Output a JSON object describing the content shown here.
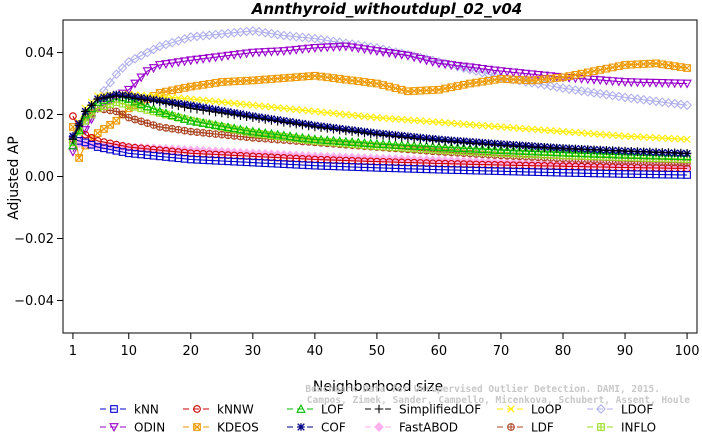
{
  "chart_data": {
    "type": "line",
    "title": "Annthyroid_withoutdupl_02_v04",
    "xlabel": "Neighborhood size",
    "ylabel": "Adjusted AP",
    "xlim": [
      1,
      100
    ],
    "ylim": [
      -0.05,
      0.05
    ],
    "xticks": [
      1,
      10,
      20,
      30,
      40,
      50,
      60,
      70,
      80,
      90,
      100
    ],
    "yticks": [
      -0.04,
      -0.02,
      0.0,
      0.02,
      0.04
    ],
    "ytick_labels": [
      "−0.04",
      "−0.02",
      "0.00",
      "0.02",
      "0.04"
    ],
    "grid": false,
    "legend_position": "bottom",
    "watermark": [
      "Benchmark Data for Unsupervised Outlier Detection. DAMI, 2015.",
      "Campos, Zimek, Sander, Campello, Micenkova, Schubert, Assent, Houle"
    ],
    "series": [
      {
        "name": "kNN",
        "color": "#0000cc",
        "marker": "square",
        "points": [
          [
            1,
            0.012
          ],
          [
            3,
            0.011
          ],
          [
            5,
            0.0095
          ],
          [
            10,
            0.0075
          ],
          [
            20,
            0.0055
          ],
          [
            30,
            0.0045
          ],
          [
            40,
            0.0035
          ],
          [
            50,
            0.0028
          ],
          [
            60,
            0.0022
          ],
          [
            70,
            0.0017
          ],
          [
            80,
            0.0012
          ],
          [
            90,
            0.0008
          ],
          [
            100,
            0.0005
          ]
        ]
      },
      {
        "name": "kNNW",
        "color": "#cc0000",
        "marker": "circle",
        "points": [
          [
            1,
            0.0195
          ],
          [
            2,
            0.0155
          ],
          [
            3,
            0.0135
          ],
          [
            5,
            0.0115
          ],
          [
            10,
            0.0095
          ],
          [
            20,
            0.0075
          ],
          [
            30,
            0.0065
          ],
          [
            40,
            0.0055
          ],
          [
            50,
            0.0048
          ],
          [
            60,
            0.0042
          ],
          [
            70,
            0.0037
          ],
          [
            80,
            0.0033
          ],
          [
            90,
            0.0029
          ],
          [
            100,
            0.0026
          ]
        ]
      },
      {
        "name": "LOF",
        "color": "#00bb00",
        "marker": "triangle-up",
        "points": [
          [
            1,
            0.01
          ],
          [
            3,
            0.02
          ],
          [
            5,
            0.024
          ],
          [
            8,
            0.026
          ],
          [
            10,
            0.025
          ],
          [
            15,
            0.021
          ],
          [
            20,
            0.018
          ],
          [
            30,
            0.0145
          ],
          [
            40,
            0.012
          ],
          [
            50,
            0.0105
          ],
          [
            60,
            0.0095
          ],
          [
            70,
            0.0085
          ],
          [
            80,
            0.0077
          ],
          [
            90,
            0.007
          ],
          [
            100,
            0.0065
          ]
        ]
      },
      {
        "name": "SimplifiedLOF",
        "color": "#000000",
        "marker": "plus",
        "points": [
          [
            1,
            0.012
          ],
          [
            3,
            0.021
          ],
          [
            5,
            0.025
          ],
          [
            8,
            0.026
          ],
          [
            10,
            0.0255
          ],
          [
            15,
            0.024
          ],
          [
            20,
            0.022
          ],
          [
            30,
            0.019
          ],
          [
            40,
            0.016
          ],
          [
            50,
            0.0135
          ],
          [
            60,
            0.0115
          ],
          [
            70,
            0.01
          ],
          [
            80,
            0.009
          ],
          [
            90,
            0.0082
          ],
          [
            100,
            0.0075
          ]
        ]
      },
      {
        "name": "LoOP",
        "color": "#ffee00",
        "marker": "x",
        "points": [
          [
            1,
            0.013
          ],
          [
            3,
            0.022
          ],
          [
            5,
            0.026
          ],
          [
            8,
            0.0265
          ],
          [
            10,
            0.0265
          ],
          [
            20,
            0.025
          ],
          [
            30,
            0.023
          ],
          [
            40,
            0.021
          ],
          [
            50,
            0.019
          ],
          [
            60,
            0.0175
          ],
          [
            70,
            0.016
          ],
          [
            80,
            0.0145
          ],
          [
            90,
            0.013
          ],
          [
            100,
            0.012
          ]
        ]
      },
      {
        "name": "LDOF",
        "color": "#b0b0ee",
        "marker": "diamond",
        "points": [
          [
            1,
            0.013
          ],
          [
            3,
            0.018
          ],
          [
            5,
            0.025
          ],
          [
            8,
            0.033
          ],
          [
            10,
            0.037
          ],
          [
            15,
            0.042
          ],
          [
            20,
            0.045
          ],
          [
            25,
            0.046
          ],
          [
            30,
            0.047
          ],
          [
            35,
            0.0455
          ],
          [
            40,
            0.0445
          ],
          [
            50,
            0.0415
          ],
          [
            60,
            0.037
          ],
          [
            70,
            0.032
          ],
          [
            80,
            0.0285
          ],
          [
            90,
            0.0255
          ],
          [
            100,
            0.023
          ]
        ]
      },
      {
        "name": "ODIN",
        "color": "#9900cc",
        "marker": "triangle-down",
        "points": [
          [
            1,
            0.008
          ],
          [
            3,
            0.015
          ],
          [
            5,
            0.022
          ],
          [
            10,
            0.028
          ],
          [
            13,
            0.034
          ],
          [
            15,
            0.036
          ],
          [
            20,
            0.0375
          ],
          [
            30,
            0.04
          ],
          [
            35,
            0.0405
          ],
          [
            40,
            0.0415
          ],
          [
            45,
            0.042
          ],
          [
            50,
            0.0405
          ],
          [
            55,
            0.039
          ],
          [
            60,
            0.0365
          ],
          [
            70,
            0.034
          ],
          [
            80,
            0.032
          ],
          [
            90,
            0.0305
          ],
          [
            100,
            0.03
          ]
        ]
      },
      {
        "name": "KDEOS",
        "color": "#ee9900",
        "marker": "square-x",
        "points": [
          [
            1,
            0.016
          ],
          [
            2,
            0.006
          ],
          [
            3,
            0.01
          ],
          [
            5,
            0.014
          ],
          [
            8,
            0.018
          ],
          [
            10,
            0.022
          ],
          [
            12,
            0.024
          ],
          [
            15,
            0.027
          ],
          [
            20,
            0.029
          ],
          [
            25,
            0.0305
          ],
          [
            30,
            0.031
          ],
          [
            40,
            0.0325
          ],
          [
            50,
            0.03
          ],
          [
            55,
            0.0275
          ],
          [
            60,
            0.028
          ],
          [
            65,
            0.03
          ],
          [
            70,
            0.0315
          ],
          [
            75,
            0.031
          ],
          [
            80,
            0.032
          ],
          [
            85,
            0.034
          ],
          [
            90,
            0.036
          ],
          [
            95,
            0.0365
          ],
          [
            100,
            0.035
          ]
        ]
      },
      {
        "name": "COF",
        "color": "#000088",
        "marker": "asterisk",
        "points": [
          [
            1,
            0.013
          ],
          [
            3,
            0.021
          ],
          [
            5,
            0.025
          ],
          [
            8,
            0.0265
          ],
          [
            10,
            0.026
          ],
          [
            15,
            0.0245
          ],
          [
            20,
            0.023
          ],
          [
            30,
            0.0195
          ],
          [
            40,
            0.0165
          ],
          [
            50,
            0.014
          ],
          [
            60,
            0.012
          ],
          [
            70,
            0.0105
          ],
          [
            80,
            0.0092
          ],
          [
            90,
            0.0082
          ],
          [
            100,
            0.0074
          ]
        ]
      },
      {
        "name": "FastABOD",
        "color": "#ffb0ee",
        "marker": "diamond-filled",
        "points": [
          [
            1,
            0.011
          ],
          [
            3,
            0.0105
          ],
          [
            5,
            0.01
          ],
          [
            10,
            0.0095
          ],
          [
            20,
            0.0085
          ],
          [
            30,
            0.0075
          ],
          [
            40,
            0.0065
          ],
          [
            50,
            0.0058
          ],
          [
            60,
            0.0052
          ],
          [
            70,
            0.0046
          ],
          [
            80,
            0.0041
          ],
          [
            90,
            0.0037
          ],
          [
            100,
            0.0033
          ]
        ]
      },
      {
        "name": "LDF",
        "color": "#aa4422",
        "marker": "circle-plus",
        "points": [
          [
            1,
            0.012
          ],
          [
            3,
            0.019
          ],
          [
            5,
            0.022
          ],
          [
            8,
            0.021
          ],
          [
            10,
            0.019
          ],
          [
            15,
            0.016
          ],
          [
            20,
            0.0145
          ],
          [
            30,
            0.0125
          ],
          [
            40,
            0.011
          ],
          [
            50,
            0.0095
          ],
          [
            60,
            0.008
          ],
          [
            70,
            0.0068
          ],
          [
            80,
            0.0058
          ],
          [
            90,
            0.005
          ],
          [
            100,
            0.0044
          ]
        ]
      },
      {
        "name": "INFLO",
        "color": "#99dd22",
        "marker": "square-cross",
        "points": [
          [
            1,
            0.011
          ],
          [
            3,
            0.018
          ],
          [
            5,
            0.022
          ],
          [
            8,
            0.024
          ],
          [
            10,
            0.023
          ],
          [
            15,
            0.0205
          ],
          [
            20,
            0.018
          ],
          [
            30,
            0.014
          ],
          [
            40,
            0.0115
          ],
          [
            50,
            0.0098
          ],
          [
            60,
            0.0086
          ],
          [
            70,
            0.0076
          ],
          [
            80,
            0.0068
          ],
          [
            90,
            0.0062
          ],
          [
            100,
            0.0056
          ]
        ]
      }
    ],
    "legend_rows": [
      [
        "kNN",
        "kNNW",
        "LOF",
        "SimplifiedLOF",
        "LoOP",
        "LDOF"
      ],
      [
        "ODIN",
        "KDEOS",
        "COF",
        "FastABOD",
        "LDF",
        "INFLO"
      ]
    ]
  }
}
